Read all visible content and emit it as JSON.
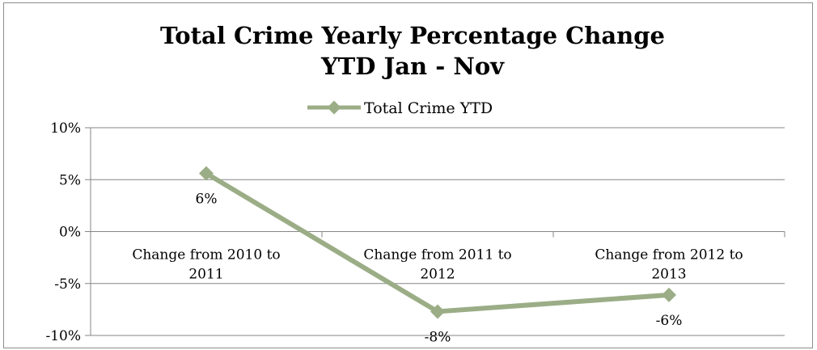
{
  "chart_data": {
    "type": "line",
    "title_lines": [
      "Total Crime Yearly Percentage Change",
      "YTD Jan - Nov"
    ],
    "categories": [
      [
        "Change from 2010 to",
        "2011"
      ],
      [
        "Change from 2011 to",
        "2012"
      ],
      [
        "Change from 2012 to",
        "2013"
      ]
    ],
    "series": [
      {
        "name": "Total Crime YTD",
        "values": [
          5.6,
          -7.7,
          -6.1
        ],
        "color": "#9bad86"
      }
    ],
    "data_labels": [
      "6%",
      "-8%",
      "-6%"
    ],
    "y_ticks": [
      10,
      5,
      0,
      -5,
      -10
    ],
    "y_tick_labels": [
      "10%",
      "5%",
      "0%",
      "-5%",
      "-10%"
    ],
    "ylim": [
      -10,
      10
    ],
    "grid": true,
    "legend_position": "top",
    "colors": {
      "gridline": "#868686",
      "axis": "#868686",
      "series": "#9bad86"
    }
  }
}
